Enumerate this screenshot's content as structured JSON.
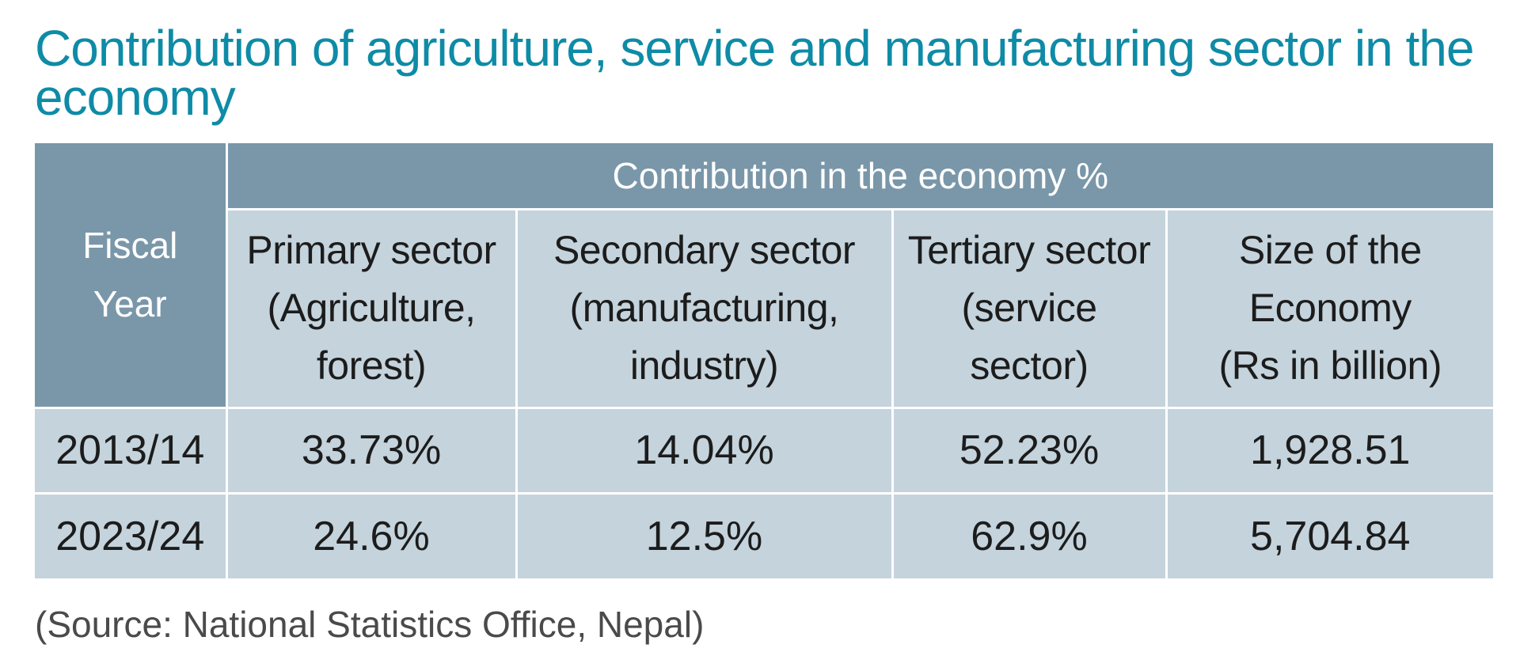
{
  "title": "Contribution of agriculture, service and manufacturing sector in the economy",
  "chart_data": {
    "type": "table",
    "title": "Contribution of agriculture, service and manufacturing sector in the economy",
    "corner_header": [
      "Fiscal",
      "Year"
    ],
    "group_header": "Contribution in the economy %",
    "columns": [
      [
        "Primary sector",
        "(Agriculture,",
        "forest)"
      ],
      [
        "Secondary sector",
        "(manufacturing,",
        "industry)"
      ],
      [
        "Tertiary sector",
        "(service",
        "sector)"
      ],
      [
        "Size of the",
        "Economy",
        "(Rs in billion)"
      ]
    ],
    "rows": [
      {
        "year": "2013/14",
        "values": [
          "33.73%",
          "14.04%",
          "52.23%",
          "1,928.51"
        ]
      },
      {
        "year": "2023/24",
        "values": [
          "24.6%",
          "12.5%",
          "62.9%",
          "5,704.84"
        ]
      }
    ]
  },
  "source": "(Source: National Statistics Office, Nepal)"
}
